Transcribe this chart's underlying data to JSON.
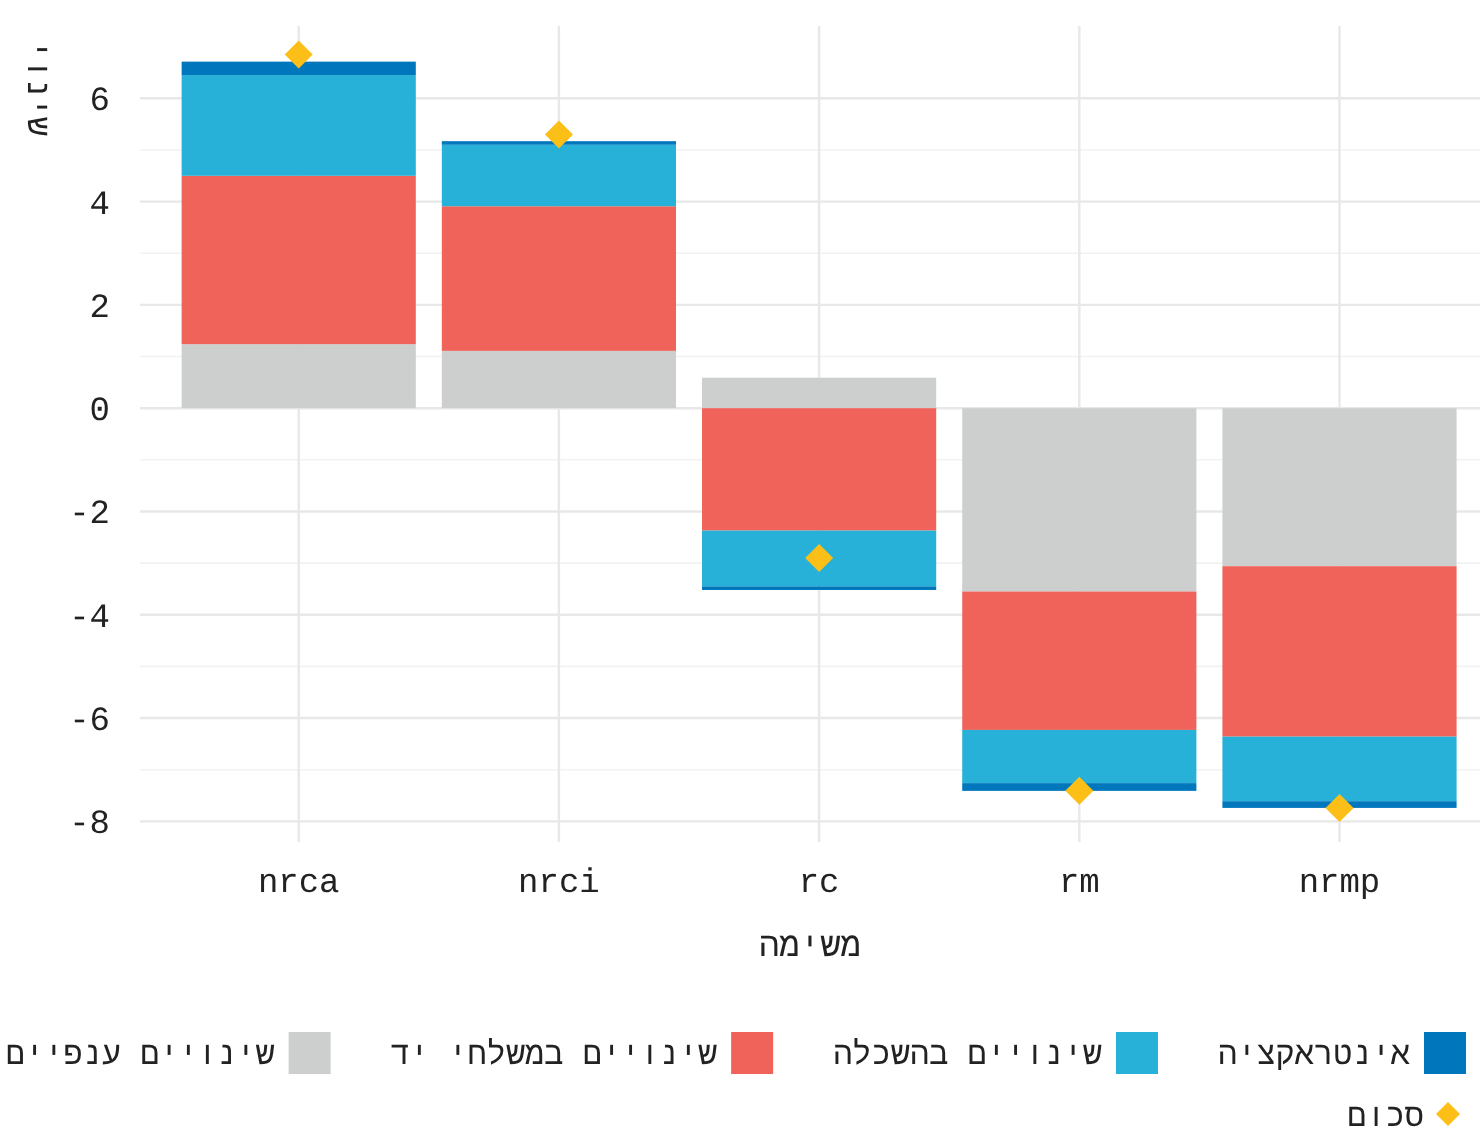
{
  "chart_data": {
    "type": "bar",
    "xlabel": "משימה",
    "ylabel": "שינוי",
    "categories": [
      "nrca",
      "nrci",
      "rc",
      "rm",
      "nrmp"
    ],
    "stacked": true,
    "ylim": [
      -8.4,
      7.4
    ],
    "yticks": [
      -8,
      -6,
      -4,
      -2,
      0,
      2,
      4,
      6
    ],
    "grid": true,
    "legend": "bottom",
    "series": [
      {
        "name": "שינויים ענפיים",
        "color": "#cdcfce",
        "values": [
          1.24,
          1.11,
          0.59,
          -3.55,
          -3.06
        ]
      },
      {
        "name": "שינויים במשלחי יד",
        "color": "#f0635a",
        "values": [
          3.26,
          2.8,
          -2.37,
          -2.68,
          -3.3
        ]
      },
      {
        "name": "שינויים בהשכלה",
        "color": "#27b0d8",
        "values": [
          1.95,
          1.19,
          -1.08,
          -1.03,
          -1.25
        ]
      },
      {
        "name": "אינטראקציה",
        "color": "#0077bd",
        "values": [
          0.26,
          0.07,
          -0.07,
          -0.15,
          -0.13
        ]
      },
      {
        "name": "סכום",
        "type": "scatter",
        "marker": "diamond",
        "color": "#fcbf17",
        "values": [
          6.85,
          5.3,
          -2.9,
          -7.41,
          -7.74
        ]
      }
    ]
  }
}
